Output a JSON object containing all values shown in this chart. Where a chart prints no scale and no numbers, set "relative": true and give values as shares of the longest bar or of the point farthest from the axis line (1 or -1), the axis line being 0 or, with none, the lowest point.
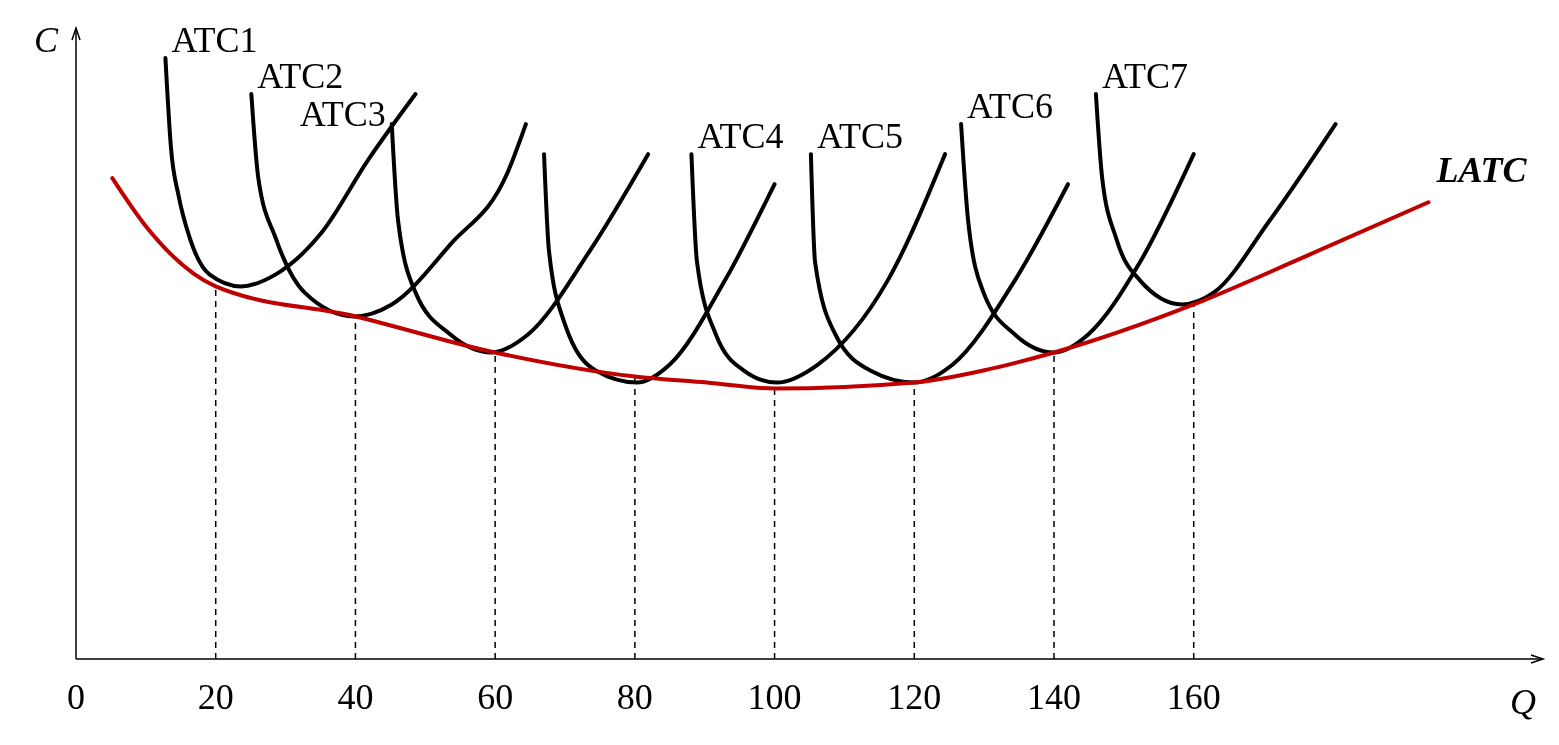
{
  "chart_data": {
    "type": "line",
    "relative": true,
    "xlabel": "Q",
    "ylabel": "C",
    "xlim": [
      0,
      210
    ],
    "xticks": [
      0,
      20,
      40,
      60,
      80,
      100,
      120,
      140,
      160
    ],
    "marker": "none",
    "line_style": "solid",
    "series": [
      {
        "name": "ATC1",
        "color": "#000000",
        "x": [
          12.8,
          13.6,
          14.7,
          16.3,
          19.1,
          23.6,
          28.6,
          35.2,
          41.8,
          48.6
        ],
        "values": [
          1,
          0.85,
          0.77,
          0.7,
          0.64,
          0.62,
          0.64,
          0.71,
          0.83,
          0.94
        ]
      },
      {
        "name": "ATC2",
        "color": "#000000",
        "x": [
          25.1,
          26.1,
          28.6,
          32.7,
          39.8,
          45.2,
          53.6,
          61.8,
          64.4
        ],
        "values": [
          0.94,
          0.8,
          0.7,
          0.61,
          0.57,
          0.59,
          0.69,
          0.81,
          0.89
        ]
      },
      {
        "name": "ATC3",
        "color": "#000000",
        "x": [
          45.2,
          46.1,
          48.6,
          53.6,
          59.5,
          64.7,
          73.6,
          81.9
        ],
        "values": [
          0.89,
          0.73,
          0.61,
          0.54,
          0.51,
          0.54,
          0.68,
          0.84
        ]
      },
      {
        "color": "#000000",
        "x": [
          67.0,
          67.7,
          69.9,
          74.4,
          80.3,
          85.0,
          92.9,
          100
        ],
        "values": [
          0.84,
          0.68,
          0.56,
          0.48,
          0.46,
          0.49,
          0.63,
          0.79
        ]
      },
      {
        "name": "ATC4",
        "color": "#000000",
        "x": [
          88.1,
          88.9,
          91.6,
          95.6,
          100.3,
          106.2,
          116.2,
          124.4
        ],
        "values": [
          0.84,
          0.66,
          0.54,
          0.48,
          0.46,
          0.49,
          0.63,
          0.84
        ]
      },
      {
        "name": "ATC5",
        "color": "#000000",
        "x": [
          105.2,
          105.8,
          108.7,
          113.7,
          120,
          125.5,
          134.4,
          142
        ],
        "values": [
          0.84,
          0.66,
          0.54,
          0.48,
          0.46,
          0.49,
          0.63,
          0.79
        ]
      },
      {
        "name": "ATC6",
        "color": "#000000",
        "x": [
          126.7,
          127.7,
          129.9,
          134.4,
          140,
          144.9,
          152.3,
          160
        ],
        "values": [
          0.89,
          0.73,
          0.61,
          0.54,
          0.51,
          0.54,
          0.66,
          0.84
        ]
      },
      {
        "name": "ATC7",
        "color": "#000000",
        "x": [
          146,
          146.9,
          148.9,
          152.3,
          158.3,
          162.9,
          170.9,
          180.3
        ],
        "values": [
          0.94,
          0.8,
          0.7,
          0.63,
          0.59,
          0.61,
          0.73,
          0.89
        ]
      },
      {
        "name": "LATC",
        "color": "#c00000",
        "x": [
          5.2,
          10,
          20,
          40,
          60,
          80,
          90.3,
          100,
          120,
          129.9,
          140,
          160,
          176,
          193.6
        ],
        "values": [
          0.8,
          0.72,
          0.62,
          0.57,
          0.51,
          0.47,
          0.46,
          0.45,
          0.46,
          0.48,
          0.51,
          0.59,
          0.67,
          0.76
        ]
      }
    ],
    "ref_lines": [
      {
        "axis": "x",
        "value": 20,
        "line_style": "dashed"
      },
      {
        "axis": "x",
        "value": 40,
        "line_style": "dashed"
      },
      {
        "axis": "x",
        "value": 60,
        "line_style": "dashed"
      },
      {
        "axis": "x",
        "value": 80,
        "line_style": "dashed"
      },
      {
        "axis": "x",
        "value": 100,
        "line_style": "dashed"
      },
      {
        "axis": "x",
        "value": 120,
        "line_style": "dashed"
      },
      {
        "axis": "x",
        "value": 140,
        "line_style": "dashed"
      },
      {
        "axis": "x",
        "value": 160,
        "line_style": "dashed"
      }
    ]
  }
}
